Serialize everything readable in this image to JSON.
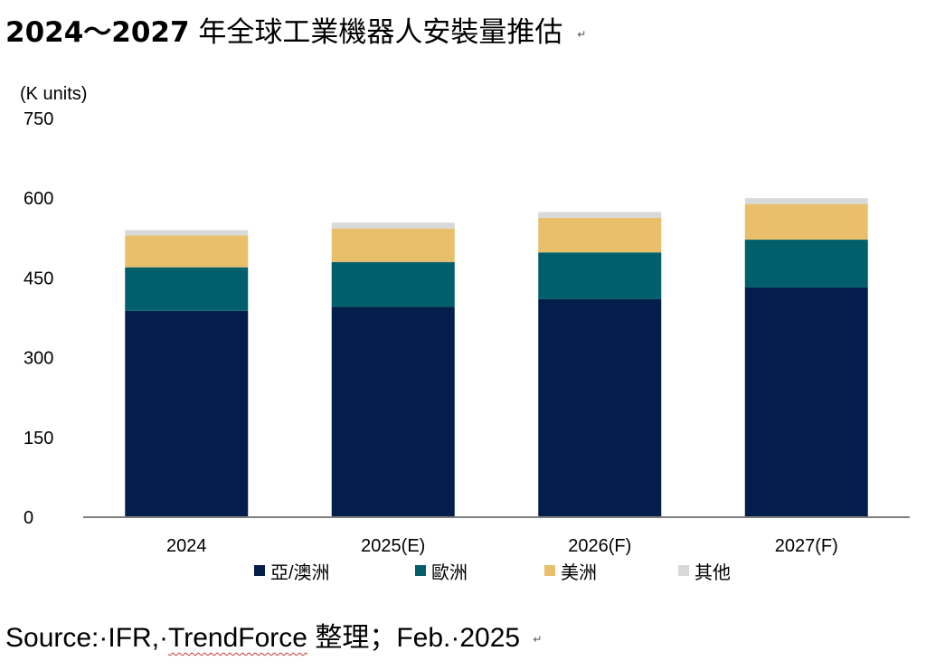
{
  "header": {
    "title_range": "2024～2027",
    "title_text": "年全球工業機器人安裝量推估",
    "return_mark": "↵"
  },
  "source": {
    "prefix": "Source:·IFR,·",
    "org": "TrendForce",
    "suffix": " 整理；Feb.·2025",
    "return_mark": "↵"
  },
  "chart_data": {
    "type": "bar",
    "stacked": true,
    "title": "2024～2027 年全球工業機器人安裝量推估",
    "ylabel": "(K units)",
    "ylim": [
      0,
      750
    ],
    "yticks": [
      0,
      150,
      300,
      450,
      600,
      750
    ],
    "categories": [
      "2024",
      "2025(E)",
      "2026(F)",
      "2027(F)"
    ],
    "series": [
      {
        "name": "亞/澳洲",
        "color": "#041e4c",
        "values": [
          388,
          396,
          410,
          432
        ]
      },
      {
        "name": "歐洲",
        "color": "#005f6b",
        "values": [
          82,
          84,
          88,
          90
        ]
      },
      {
        "name": "美洲",
        "color": "#e8c06b",
        "values": [
          60,
          63,
          65,
          67
        ]
      },
      {
        "name": "其他",
        "color": "#d9d9d9",
        "values": [
          10,
          11,
          11,
          11
        ]
      }
    ],
    "grid": false,
    "legend_position": "bottom"
  }
}
